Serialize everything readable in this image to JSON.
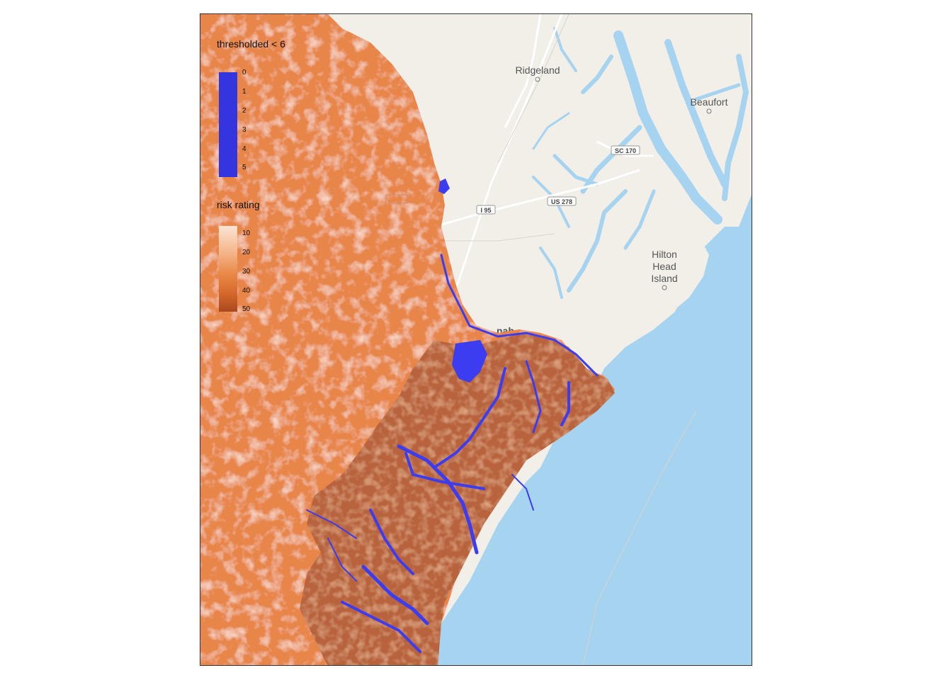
{
  "legends": {
    "threshold": {
      "title": "thresholded < 6",
      "ticks": [
        "0",
        "1",
        "2",
        "3",
        "4",
        "5"
      ],
      "color": "#3535e0"
    },
    "risk": {
      "title": "risk rating",
      "ticks": [
        "10",
        "20",
        "30",
        "40",
        "50"
      ],
      "color_low": "#fbe4d5",
      "color_high": "#a8481e"
    }
  },
  "places": {
    "ridgeland": "Ridgeland",
    "beaufort": "Beaufort",
    "hilton_head_1": "Hilton",
    "hilton_head_2": "Head",
    "hilton_head_3": "Island",
    "savannah_partial": "nah"
  },
  "roads": {
    "i95": "I 95",
    "us278": "US 278",
    "sc170": "SC 170"
  },
  "colors": {
    "land": "#f2efe9",
    "water": "#a6d3f0",
    "risk_mid": "#e07a3c",
    "risk_dark": "#b9633a",
    "threshold_water": "#3c3cf0"
  }
}
